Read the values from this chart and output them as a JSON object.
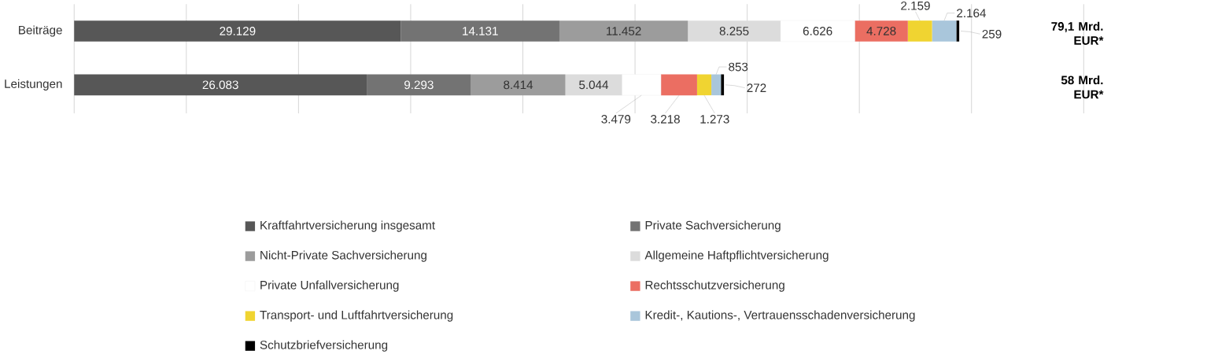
{
  "chart_data": {
    "type": "bar",
    "orientation": "horizontal",
    "stacked": true,
    "categories": [
      "Beiträge",
      "Leistungen"
    ],
    "series": [
      {
        "name": "Kraftfahrtversicherung insgesamt",
        "color": "#575757",
        "values": [
          29129,
          26083
        ],
        "value_labels": [
          "29.129",
          "26.083"
        ]
      },
      {
        "name": "Private Sachversicherung",
        "color": "#737373",
        "values": [
          14131,
          9293
        ],
        "value_labels": [
          "14.131",
          "9.293"
        ]
      },
      {
        "name": "Nicht-Private Sachversicherung",
        "color": "#9c9c9c",
        "values": [
          11452,
          8414
        ],
        "value_labels": [
          "11.452",
          "8.414"
        ]
      },
      {
        "name": "Allgemeine Haftpflichtversicherung",
        "color": "#dcdcdc",
        "values": [
          8255,
          5044
        ],
        "value_labels": [
          "8.255",
          "5.044"
        ]
      },
      {
        "name": "Private Unfallversicherung",
        "color": "#ffffff",
        "values": [
          6626,
          3479
        ],
        "value_labels": [
          "6.626",
          "3.479"
        ]
      },
      {
        "name": "Rechtsschutzversicherung",
        "color": "#eb6e62",
        "values": [
          4728,
          3218
        ],
        "value_labels": [
          "4.728",
          "3.218"
        ]
      },
      {
        "name": "Transport- und Luftfahrtversicherung",
        "color": "#f0d431",
        "values": [
          2159,
          1273
        ],
        "value_labels": [
          "2.159",
          "1.273"
        ]
      },
      {
        "name": "Kredit-, Kautions-, Vertrauensschadenversicherung",
        "color": "#a9c6db",
        "values": [
          2164,
          853
        ],
        "value_labels": [
          "2.164",
          "853"
        ]
      },
      {
        "name": "Schutzbriefversicherung",
        "color": "#000000",
        "values": [
          259,
          272
        ],
        "value_labels": [
          "259",
          "272"
        ]
      }
    ],
    "annotations": [
      "79,1 Mrd. EUR*",
      "58 Mrd. EUR*"
    ],
    "xlim": [
      0,
      90000
    ],
    "xticks": [
      {
        "value": 0,
        "label": null
      },
      {
        "value": 10000,
        "label": null
      },
      {
        "value": 20000,
        "label": null
      },
      {
        "value": 30000,
        "label": null
      },
      {
        "value": 40000,
        "label": null
      },
      {
        "value": 50000,
        "label": null
      },
      {
        "value": 60000,
        "label": null
      },
      {
        "value": 70000,
        "label": null
      },
      {
        "value": 80000,
        "label": null
      },
      {
        "value": 90000,
        "label": null
      }
    ],
    "grid": "x",
    "legend": "bottom",
    "tick_labels": "y"
  }
}
